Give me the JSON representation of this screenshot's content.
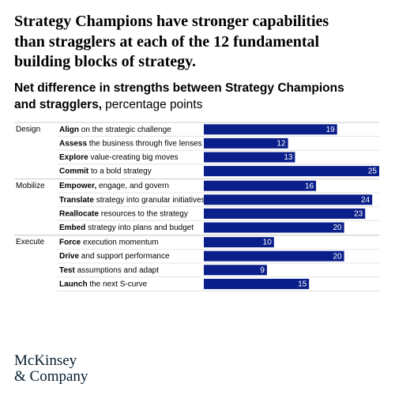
{
  "chart_data": {
    "type": "bar",
    "title": [
      "Strategy Champions have stronger capabilities",
      "than stragglers at each of the 12 fundamental",
      "building blocks of strategy."
    ],
    "subtitle": {
      "bold": [
        "Net difference in strengths between Strategy Champions",
        "and stragglers,"
      ],
      "regular": "percentage points"
    },
    "color": "#0b1f8a",
    "groups": [
      {
        "name": "Design",
        "categories": [
          "Align on the strategic challenge",
          "Assess the business through five lenses",
          "Explore value-creating big moves",
          "Commit to a bold strategy"
        ],
        "values": [
          19,
          12,
          13,
          25
        ]
      },
      {
        "name": "Mobilize",
        "categories": [
          "Empower, engage, and govern",
          "Translate strategy into granular initiatives",
          "Reallocate resources to the strategy",
          "Embed strategy into plans and budget"
        ],
        "values": [
          16,
          24,
          23,
          20
        ]
      },
      {
        "name": "Execute",
        "categories": [
          "Force execution momentum",
          "Drive and support performance",
          "Test assumptions and adapt",
          "Launch the next S-curve"
        ],
        "values": [
          10,
          20,
          9,
          15
        ]
      }
    ]
  },
  "footer": {
    "logo": [
      "McKinsey",
      "& Company"
    ]
  }
}
